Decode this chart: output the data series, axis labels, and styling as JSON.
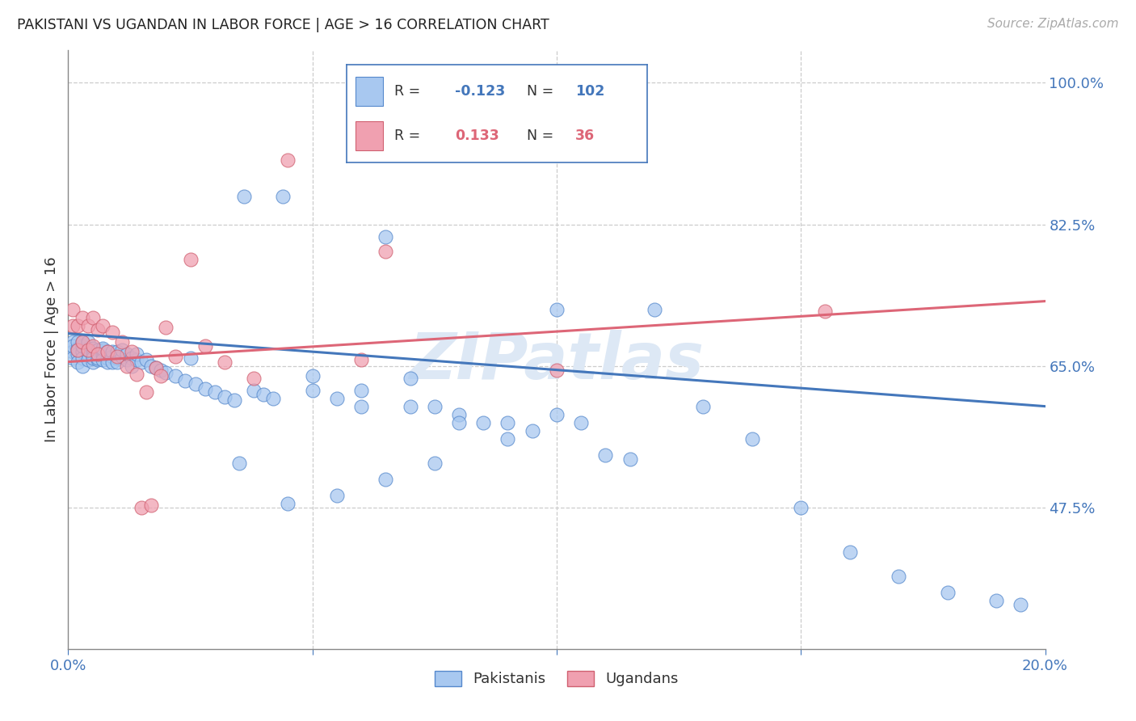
{
  "title": "PAKISTANI VS UGANDAN IN LABOR FORCE | AGE > 16 CORRELATION CHART",
  "source": "Source: ZipAtlas.com",
  "ylabel": "In Labor Force | Age > 16",
  "xlim": [
    0.0,
    0.2
  ],
  "ylim": [
    0.3,
    1.04
  ],
  "ytick_positions": [
    0.475,
    0.65,
    0.825,
    1.0
  ],
  "ytick_labels": [
    "47.5%",
    "65.0%",
    "82.5%",
    "100.0%"
  ],
  "pakistani_R": -0.123,
  "pakistani_N": 102,
  "ugandan_R": 0.133,
  "ugandan_N": 36,
  "blue_scatter_color": "#a8c8f0",
  "blue_edge_color": "#5588cc",
  "pink_scatter_color": "#f0a0b0",
  "pink_edge_color": "#d06070",
  "blue_line_color": "#4477bb",
  "pink_line_color": "#dd6677",
  "tick_color": "#4477bb",
  "grid_color": "#cccccc",
  "title_color": "#222222",
  "source_color": "#aaaaaa",
  "ylabel_color": "#333333",
  "watermark_color": "#dde8f5",
  "legend_edge_color": "#4477bb",
  "pak_line_x0": 0.0,
  "pak_line_y0": 0.69,
  "pak_line_x1": 0.2,
  "pak_line_y1": 0.6,
  "uga_line_x0": 0.0,
  "uga_line_y0": 0.655,
  "uga_line_x1": 0.2,
  "uga_line_y1": 0.73,
  "pak_x": [
    0.001,
    0.001,
    0.001,
    0.001,
    0.002,
    0.002,
    0.002,
    0.002,
    0.002,
    0.003,
    0.003,
    0.003,
    0.003,
    0.003,
    0.004,
    0.004,
    0.004,
    0.004,
    0.004,
    0.005,
    0.005,
    0.005,
    0.005,
    0.005,
    0.006,
    0.006,
    0.006,
    0.006,
    0.007,
    0.007,
    0.007,
    0.007,
    0.008,
    0.008,
    0.008,
    0.009,
    0.009,
    0.009,
    0.01,
    0.01,
    0.01,
    0.011,
    0.011,
    0.012,
    0.012,
    0.013,
    0.013,
    0.014,
    0.014,
    0.015,
    0.016,
    0.017,
    0.018,
    0.019,
    0.02,
    0.022,
    0.024,
    0.026,
    0.028,
    0.03,
    0.032,
    0.034,
    0.036,
    0.038,
    0.04,
    0.042,
    0.044,
    0.05,
    0.055,
    0.06,
    0.065,
    0.07,
    0.075,
    0.08,
    0.085,
    0.09,
    0.095,
    0.1,
    0.105,
    0.11,
    0.115,
    0.12,
    0.13,
    0.14,
    0.15,
    0.16,
    0.17,
    0.18,
    0.19,
    0.195,
    0.05,
    0.06,
    0.07,
    0.08,
    0.09,
    0.1,
    0.025,
    0.035,
    0.045,
    0.055,
    0.065,
    0.075
  ],
  "pak_y": [
    0.68,
    0.668,
    0.675,
    0.66,
    0.672,
    0.665,
    0.68,
    0.655,
    0.67,
    0.668,
    0.66,
    0.675,
    0.65,
    0.68,
    0.665,
    0.672,
    0.658,
    0.67,
    0.68,
    0.662,
    0.668,
    0.655,
    0.672,
    0.66,
    0.665,
    0.658,
    0.67,
    0.66,
    0.665,
    0.67,
    0.658,
    0.672,
    0.66,
    0.668,
    0.655,
    0.662,
    0.668,
    0.655,
    0.66,
    0.668,
    0.655,
    0.662,
    0.67,
    0.658,
    0.665,
    0.66,
    0.65,
    0.658,
    0.665,
    0.655,
    0.658,
    0.65,
    0.648,
    0.645,
    0.642,
    0.638,
    0.632,
    0.628,
    0.622,
    0.618,
    0.612,
    0.608,
    0.86,
    0.62,
    0.615,
    0.61,
    0.86,
    0.62,
    0.61,
    0.6,
    0.81,
    0.635,
    0.6,
    0.59,
    0.58,
    0.58,
    0.57,
    0.59,
    0.58,
    0.54,
    0.535,
    0.72,
    0.6,
    0.56,
    0.475,
    0.42,
    0.39,
    0.37,
    0.36,
    0.355,
    0.638,
    0.62,
    0.6,
    0.58,
    0.56,
    0.72,
    0.66,
    0.53,
    0.48,
    0.49,
    0.51,
    0.53
  ],
  "uga_x": [
    0.001,
    0.001,
    0.002,
    0.002,
    0.003,
    0.003,
    0.004,
    0.004,
    0.005,
    0.005,
    0.006,
    0.006,
    0.007,
    0.008,
    0.009,
    0.01,
    0.011,
    0.012,
    0.013,
    0.014,
    0.015,
    0.016,
    0.017,
    0.018,
    0.019,
    0.02,
    0.022,
    0.025,
    0.028,
    0.032,
    0.038,
    0.045,
    0.06,
    0.065,
    0.1,
    0.155
  ],
  "uga_y": [
    0.72,
    0.7,
    0.7,
    0.67,
    0.71,
    0.68,
    0.7,
    0.67,
    0.71,
    0.675,
    0.695,
    0.665,
    0.7,
    0.668,
    0.692,
    0.662,
    0.68,
    0.65,
    0.668,
    0.64,
    0.475,
    0.618,
    0.478,
    0.648,
    0.638,
    0.698,
    0.662,
    0.782,
    0.675,
    0.655,
    0.635,
    0.905,
    0.658,
    0.792,
    0.645,
    0.718
  ]
}
